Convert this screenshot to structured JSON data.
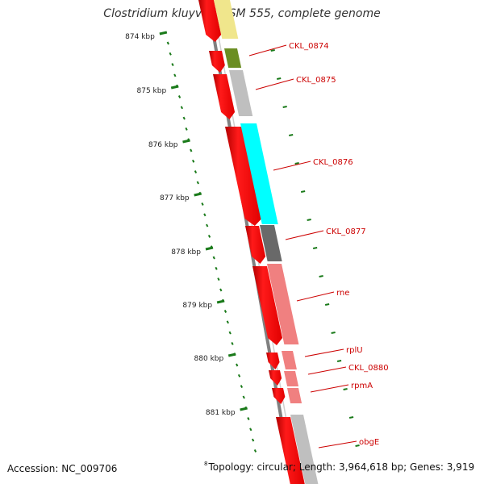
{
  "title": "Clostridium kluyveri DSM 555, complete genome",
  "scale": {
    "tick_labels": [
      "874 kbp",
      "875 kbp",
      "876 kbp",
      "877 kbp",
      "878 kbp",
      "879 kbp",
      "880 kbp",
      "881 kbp"
    ]
  },
  "genes": [
    {
      "label": "CKL_0874",
      "color": "#6b8e23"
    },
    {
      "label": "CKL_0875",
      "color": "#bfbfbf"
    },
    {
      "label": "CKL_0876",
      "color": "#00ffff"
    },
    {
      "label": "CKL_0877",
      "color": "#696969"
    },
    {
      "label": "rne",
      "color": "#f08080"
    },
    {
      "label": "rplU",
      "color": "#f08080"
    },
    {
      "label": "CKL_0880",
      "color": "#f08080"
    },
    {
      "label": "rpmA",
      "color": "#f08080"
    },
    {
      "label": "obgE",
      "color": "#bfbfbf"
    }
  ],
  "colors": {
    "cds_strand": "#ff0000",
    "backbone": "#808080",
    "tick": "#1a7a1a",
    "label": "#cc0000",
    "top_partial_gene": "#f0e68c"
  },
  "footer": {
    "accession": "Accession: NC_009706",
    "superscript": "8",
    "topology": "Topology: circular; Length: 3,964,618 bp; Genes: 3,919"
  }
}
